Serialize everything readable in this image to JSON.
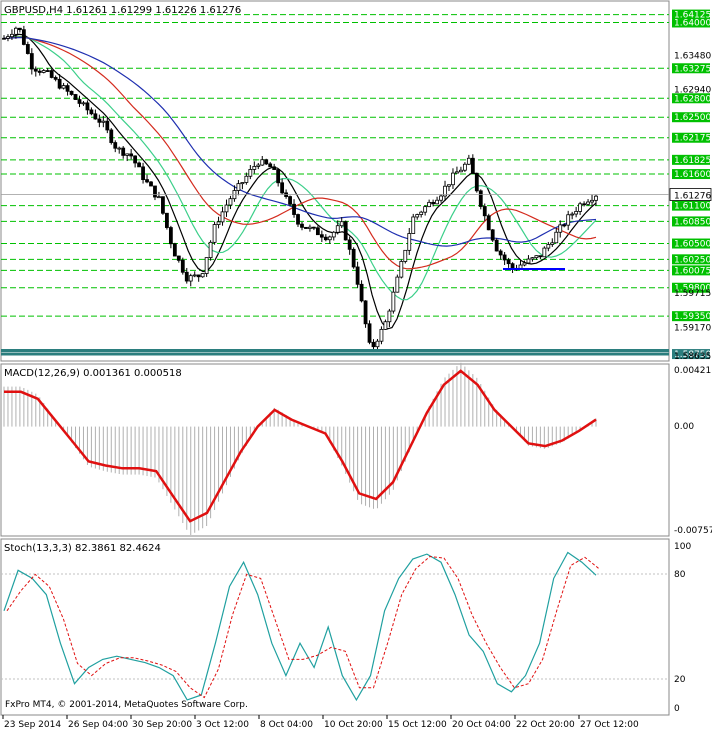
{
  "header": {
    "title": "GBPUSD,H4",
    "ohlc": "1.61261 1.61299 1.61226 1.61276"
  },
  "price_panel": {
    "scale_ticks": [
      "1.63480",
      "1.62940",
      "1.59715",
      "1.59170"
    ],
    "level_lines": [
      "1.64125",
      "1.64000",
      "1.63275",
      "1.62800",
      "1.62500",
      "1.62175",
      "1.61825",
      "1.61600",
      "1.61100",
      "1.60850",
      "1.60500",
      "1.60250",
      "1.60075",
      "1.59800",
      "1.59350",
      "1.58750"
    ],
    "current_price": "1.61276",
    "bottom_label": "1.58635",
    "colors": {
      "level": "#00c000",
      "support_hi": "#2b7e7e",
      "ma_blue": "#1f2fb0",
      "ma_red": "#d42b1e",
      "ma_green": "#3ccf8a",
      "ma_black": "#000000",
      "support_line": "#0000ff"
    }
  },
  "macd_panel": {
    "label": "MACD(12,26,9) 0.001361 0.000518",
    "ticks": [
      "0.004211",
      "0.00",
      "-0.007576"
    ],
    "colors": {
      "signal": "#e01010",
      "hist": "#b0b0b0"
    }
  },
  "stoch_panel": {
    "label": "Stoch(13,3,3) 82.3861 82.4624",
    "ticks": [
      "100",
      "80",
      "20",
      "0"
    ],
    "colors": {
      "main": "#20a0a0",
      "signal": "#e01010"
    }
  },
  "x_axis": {
    "labels": [
      "23 Sep 2014",
      "26 Sep 04:00",
      "30 Sep 20:00",
      "3 Oct 12:00",
      "8 Oct 04:00",
      "10 Oct 20:00",
      "15 Oct 12:00",
      "20 Oct 04:00",
      "22 Oct 20:00",
      "27 Oct 12:00"
    ]
  },
  "copyright": "FxPro MT4, © 2001-2014, MetaQuotes Software Corp.",
  "chart_data": {
    "type": "candlestick",
    "title": "GBPUSD,H4",
    "y_range": [
      1.5864,
      1.6434
    ],
    "x_categories": [
      "23 Sep 2014",
      "26 Sep 04:00",
      "30 Sep 20:00",
      "3 Oct 12:00",
      "8 Oct 04:00",
      "10 Oct 20:00",
      "15 Oct 12:00",
      "20 Oct 04:00",
      "22 Oct 20:00",
      "27 Oct 12:00"
    ],
    "close_path": [
      1.6375,
      1.6395,
      1.633,
      1.632,
      1.63,
      1.628,
      1.626,
      1.624,
      1.62,
      1.619,
      1.615,
      1.612,
      1.604,
      1.5995,
      1.6,
      1.608,
      1.612,
      1.615,
      1.618,
      1.617,
      1.612,
      1.608,
      1.607,
      1.606,
      1.608,
      1.6,
      1.588,
      1.592,
      1.6,
      1.609,
      1.611,
      1.613,
      1.616,
      1.618,
      1.61,
      1.604,
      1.601,
      1.602,
      1.603,
      1.606,
      1.609,
      1.6115,
      1.6128
    ],
    "macd_signal_path": [
      0.0025,
      0.0025,
      0.002,
      0.0005,
      -0.001,
      -0.0025,
      -0.0028,
      -0.003,
      -0.003,
      -0.0032,
      -0.005,
      -0.0068,
      -0.0062,
      -0.004,
      -0.0018,
      0.0,
      0.0012,
      0.0005,
      0.0,
      -0.0005,
      -0.0025,
      -0.0048,
      -0.0052,
      -0.004,
      -0.0015,
      0.001,
      0.003,
      0.004,
      0.003,
      0.0012,
      0.0,
      -0.0012,
      -0.0014,
      -0.001,
      -0.0003,
      0.0005
    ],
    "stoch_main_path": [
      60,
      85,
      80,
      70,
      40,
      15,
      25,
      30,
      32,
      30,
      28,
      25,
      20,
      5,
      8,
      40,
      75,
      90,
      70,
      40,
      20,
      40,
      25,
      50,
      20,
      5,
      20,
      60,
      80,
      92,
      95,
      90,
      70,
      45,
      35,
      15,
      10,
      20,
      40,
      80,
      96,
      90,
      82
    ]
  }
}
